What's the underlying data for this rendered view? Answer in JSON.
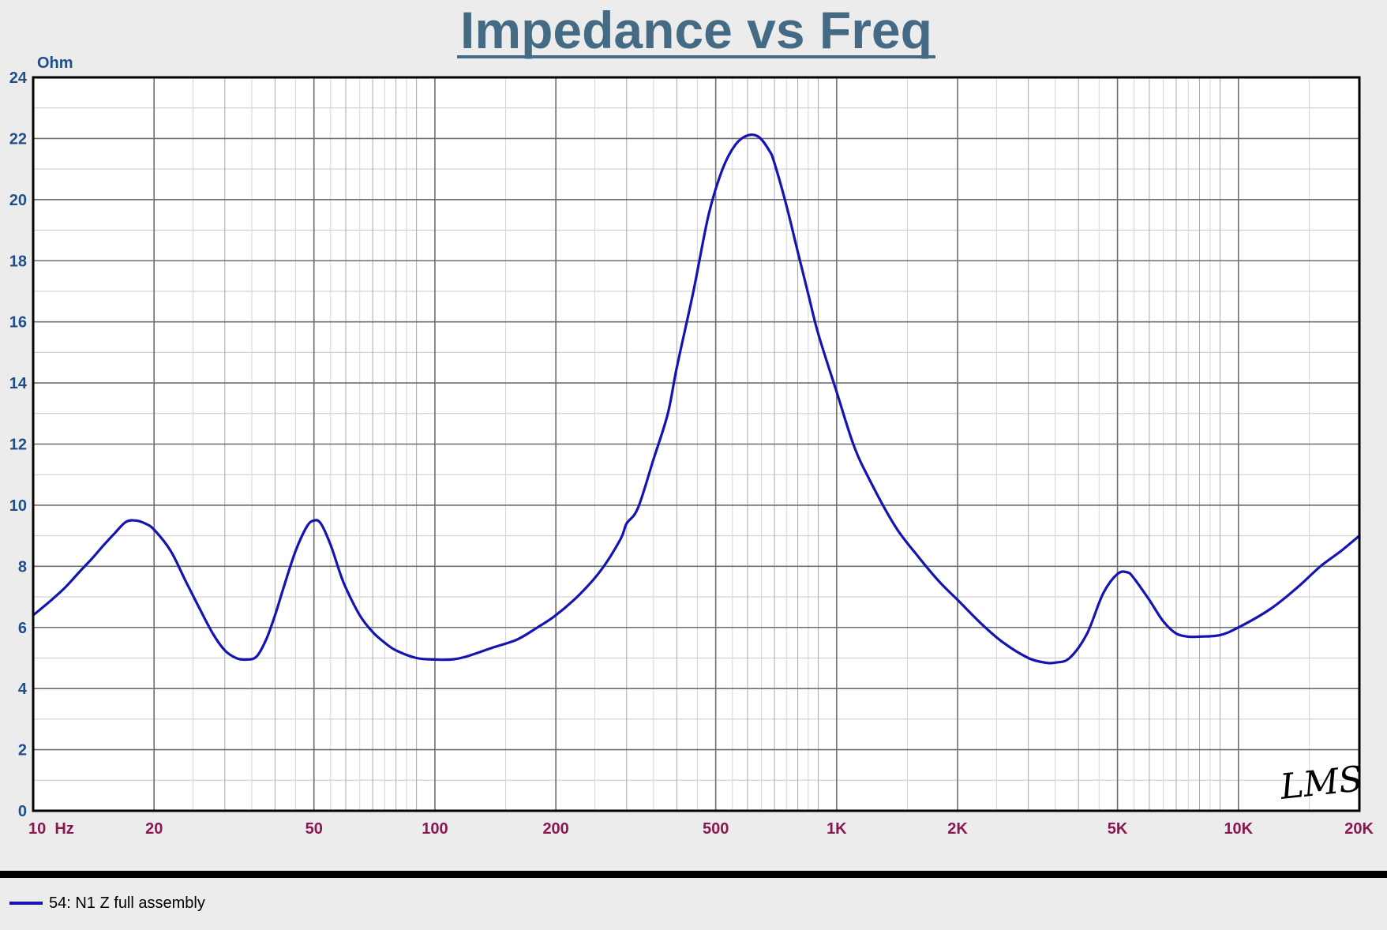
{
  "chart_data": {
    "type": "line",
    "title": "Impedance vs Freq",
    "ylabel": "Ohm",
    "x_scale": "log",
    "xlim": [
      10,
      20000
    ],
    "ylim": [
      0,
      24
    ],
    "grid": true,
    "y_ticks": [
      0,
      2,
      4,
      6,
      8,
      10,
      12,
      14,
      16,
      18,
      20,
      22,
      24
    ],
    "x_ticks": [
      {
        "value": 10,
        "label": "10  Hz"
      },
      {
        "value": 20,
        "label": "20"
      },
      {
        "value": 50,
        "label": "50"
      },
      {
        "value": 100,
        "label": "100"
      },
      {
        "value": 200,
        "label": "200"
      },
      {
        "value": 500,
        "label": "500"
      },
      {
        "value": 1000,
        "label": "1K"
      },
      {
        "value": 2000,
        "label": "2K"
      },
      {
        "value": 5000,
        "label": "5K"
      },
      {
        "value": 10000,
        "label": "10K"
      },
      {
        "value": 20000,
        "label": "20K"
      }
    ],
    "logo": "LMS",
    "legend": {
      "placement": "bottom-left",
      "entries": [
        "54: N1 Z full assembly"
      ]
    },
    "series": [
      {
        "name": "54: N1 Z full assembly",
        "color": "#1414b4",
        "x": [
          10,
          11,
          12,
          13,
          14,
          15,
          16,
          17,
          18,
          19,
          20,
          22,
          24,
          26,
          28,
          30,
          32,
          34,
          36,
          38,
          40,
          42,
          45,
          48,
          50,
          52,
          55,
          58,
          60,
          65,
          70,
          75,
          80,
          90,
          100,
          110,
          120,
          140,
          160,
          180,
          200,
          230,
          260,
          290,
          300,
          320,
          350,
          380,
          400,
          440,
          480,
          520,
          560,
          600,
          640,
          680,
          700,
          750,
          800,
          850,
          900,
          1000,
          1100,
          1200,
          1400,
          1600,
          1800,
          2000,
          2300,
          2600,
          3000,
          3300,
          3500,
          3800,
          4200,
          4600,
          5000,
          5300,
          5500,
          6000,
          6500,
          7000,
          7500,
          8000,
          9000,
          10000,
          12000,
          14000,
          16000,
          18000,
          20000
        ],
        "values": [
          6.4,
          6.85,
          7.3,
          7.8,
          8.25,
          8.7,
          9.1,
          9.45,
          9.5,
          9.4,
          9.2,
          8.5,
          7.5,
          6.6,
          5.8,
          5.25,
          5.0,
          4.95,
          5.05,
          5.6,
          6.4,
          7.3,
          8.5,
          9.3,
          9.5,
          9.4,
          8.7,
          7.8,
          7.3,
          6.4,
          5.85,
          5.5,
          5.25,
          5.0,
          4.95,
          4.95,
          5.05,
          5.35,
          5.6,
          6.0,
          6.4,
          7.1,
          7.9,
          8.9,
          9.4,
          9.9,
          11.5,
          13.0,
          14.5,
          17.0,
          19.5,
          21.0,
          21.8,
          22.1,
          22.05,
          21.6,
          21.2,
          19.8,
          18.3,
          16.9,
          15.6,
          13.7,
          12.0,
          10.9,
          9.3,
          8.3,
          7.5,
          6.9,
          6.1,
          5.5,
          5.0,
          4.85,
          4.85,
          5.0,
          5.8,
          7.1,
          7.75,
          7.8,
          7.6,
          6.9,
          6.2,
          5.8,
          5.7,
          5.7,
          5.75,
          6.0,
          6.6,
          7.3,
          8.0,
          8.5,
          9.0
        ]
      }
    ]
  }
}
